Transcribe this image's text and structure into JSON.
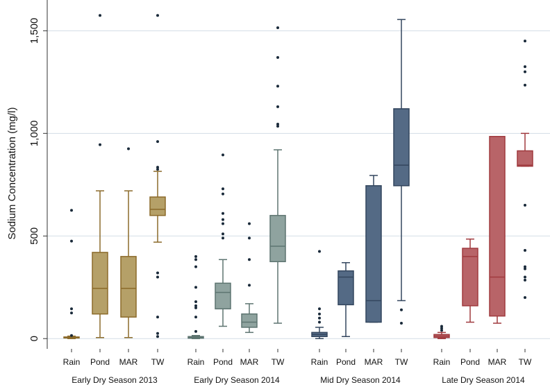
{
  "chart_data": {
    "type": "box",
    "ylabel": "Sodium Concentration (mg/l)",
    "ylim": [
      -50,
      1650
    ],
    "yticks": [
      0,
      500,
      {
        "value": 1000,
        "label": "1,000"
      },
      {
        "value": 1500,
        "label": "1,500"
      }
    ],
    "grid": true,
    "groups": [
      {
        "name": "Early Dry Season 2013",
        "color": "#b5a068",
        "stroke": "#8b6a2a",
        "categories": [
          "Rain",
          "Pond",
          "MAR",
          "TW"
        ],
        "boxes": [
          {
            "min": 0,
            "q1": 3,
            "median": 5,
            "q3": 8,
            "max": 12,
            "outliers": [
              625,
              475,
              145,
              125,
              15
            ]
          },
          {
            "min": 5,
            "q1": 120,
            "median": 245,
            "q3": 420,
            "max": 720,
            "outliers": [
              1575,
              945
            ]
          },
          {
            "min": 5,
            "q1": 105,
            "median": 245,
            "q3": 400,
            "max": 720,
            "outliers": [
              925
            ]
          },
          {
            "min": 470,
            "q1": 600,
            "median": 630,
            "q3": 690,
            "max": 815,
            "outliers": [
              1575,
              960,
              835,
              825,
              320,
              300,
              105,
              25,
              10
            ]
          }
        ]
      },
      {
        "name": "Early Dry Season 2014",
        "color": "#8fa39f",
        "stroke": "#5d7470",
        "categories": [
          "Rain",
          "Pond",
          "MAR",
          "TW"
        ],
        "boxes": [
          {
            "min": 0,
            "q1": 2,
            "median": 5,
            "q3": 10,
            "max": 15,
            "outliers": [
              400,
              385,
              350,
              250,
              180,
              160,
              150,
              105,
              35
            ]
          },
          {
            "min": 60,
            "q1": 145,
            "median": 225,
            "q3": 270,
            "max": 385,
            "outliers": [
              895,
              730,
              705,
              610,
              580,
              560,
              510,
              490
            ]
          },
          {
            "min": 30,
            "q1": 55,
            "median": 80,
            "q3": 120,
            "max": 170,
            "outliers": [
              560,
              490,
              385,
              260
            ]
          },
          {
            "min": 75,
            "q1": 375,
            "median": 450,
            "q3": 600,
            "max": 920,
            "outliers": [
              1515,
              1370,
              1230,
              1130,
              1045,
              1035
            ]
          }
        ]
      },
      {
        "name": "Mid Dry Season 2014",
        "color": "#546a85",
        "stroke": "#33465e",
        "categories": [
          "Rain",
          "Pond",
          "MAR",
          "TW"
        ],
        "boxes": [
          {
            "min": 0,
            "q1": 10,
            "median": 20,
            "q3": 30,
            "max": 55,
            "outliers": [
              425,
              145,
              120,
              100,
              80
            ]
          },
          {
            "min": 10,
            "q1": 165,
            "median": 300,
            "q3": 330,
            "max": 370,
            "outliers": []
          },
          {
            "min": 80,
            "q1": 80,
            "median": 185,
            "q3": 745,
            "max": 795,
            "outliers": []
          },
          {
            "min": 185,
            "q1": 745,
            "median": 845,
            "q3": 1120,
            "max": 1555,
            "outliers": [
              140,
              75
            ]
          }
        ]
      },
      {
        "name": "Late Dry Season 2014",
        "color": "#b86468",
        "stroke": "#a03a3e",
        "categories": [
          "Rain",
          "Pond",
          "MAR",
          "TW"
        ],
        "boxes": [
          {
            "min": 0,
            "q1": 5,
            "median": 12,
            "q3": 20,
            "max": 30,
            "outliers": [
              60,
              50,
              40
            ]
          },
          {
            "min": 80,
            "q1": 160,
            "median": 400,
            "q3": 440,
            "max": 485,
            "outliers": []
          },
          {
            "min": 75,
            "q1": 110,
            "median": 300,
            "q3": 985,
            "max": 985,
            "outliers": []
          },
          {
            "min": 840,
            "q1": 840,
            "median": 845,
            "q3": 915,
            "max": 1000,
            "outliers": [
              1450,
              1325,
              1300,
              1235,
              650,
              430,
              350,
              340,
              300,
              285,
              200
            ]
          }
        ]
      }
    ]
  }
}
